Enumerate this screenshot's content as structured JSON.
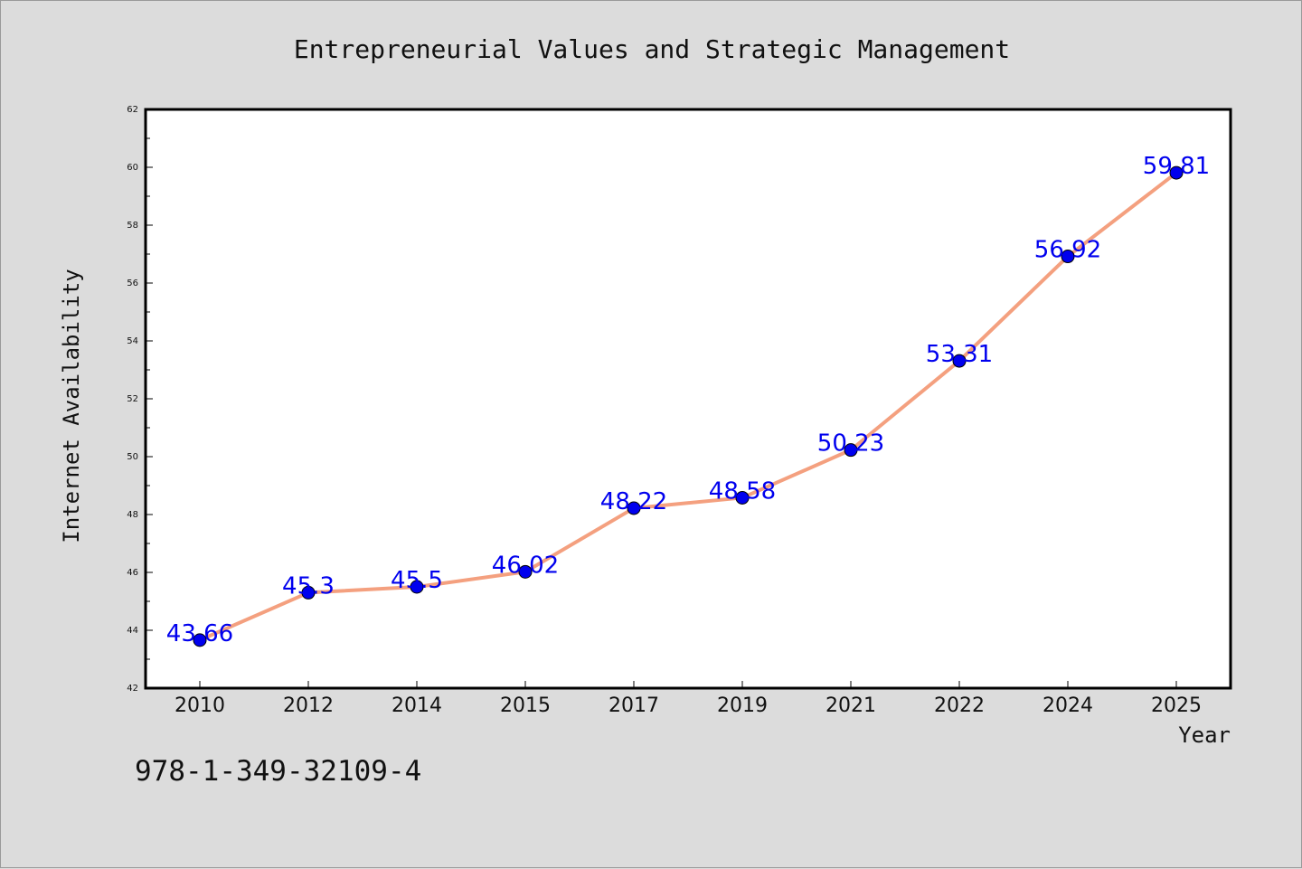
{
  "chart_data": {
    "type": "line",
    "title": "Entrepreneurial Values and Strategic Management",
    "xlabel": "Year",
    "ylabel": "Internet Availability",
    "categories": [
      "2010",
      "2012",
      "2014",
      "2015",
      "2017",
      "2019",
      "2021",
      "2022",
      "2024",
      "2025"
    ],
    "series": [
      {
        "values": [
          43.66,
          45.3,
          45.5,
          46.02,
          48.22,
          48.58,
          50.23,
          53.31,
          56.92,
          59.81
        ],
        "labels": [
          "43.66",
          "45.3",
          "45.5",
          "46.02",
          "48.22",
          "48.58",
          "50.23",
          "53.31",
          "56.92",
          "59.81"
        ],
        "line_color": "#f4a07f",
        "marker_color": "#0000ee"
      }
    ],
    "ylim": [
      42,
      62
    ],
    "yticks": [
      "42",
      "44",
      "46",
      "48",
      "50",
      "52",
      "54",
      "56",
      "58",
      "60",
      "62"
    ],
    "grid": false,
    "label_color": "#0000ee"
  },
  "footer": {
    "isbn": "978-1-349-32109-4"
  }
}
